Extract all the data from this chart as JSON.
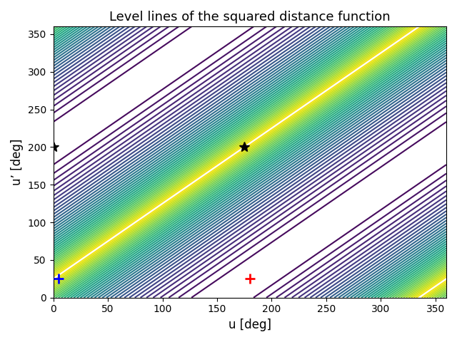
{
  "title": "Level lines of the squared distance function",
  "xlabel": "u [deg]",
  "ylabel": "u’ [deg]",
  "xlim": [
    0,
    360
  ],
  "ylim": [
    0,
    360
  ],
  "xticks": [
    0,
    50,
    100,
    150,
    200,
    250,
    300,
    350
  ],
  "yticks": [
    0,
    50,
    100,
    150,
    200,
    250,
    300,
    350
  ],
  "colormap": "viridis",
  "n_levels": 40,
  "point_red": [
    180,
    25
  ],
  "point_blue": [
    5,
    25
  ],
  "star1": [
    0,
    200
  ],
  "star2": [
    175,
    200
  ],
  "u0": 180,
  "up0": 25,
  "figsize": [
    6.4,
    4.8
  ],
  "dpi": 100
}
